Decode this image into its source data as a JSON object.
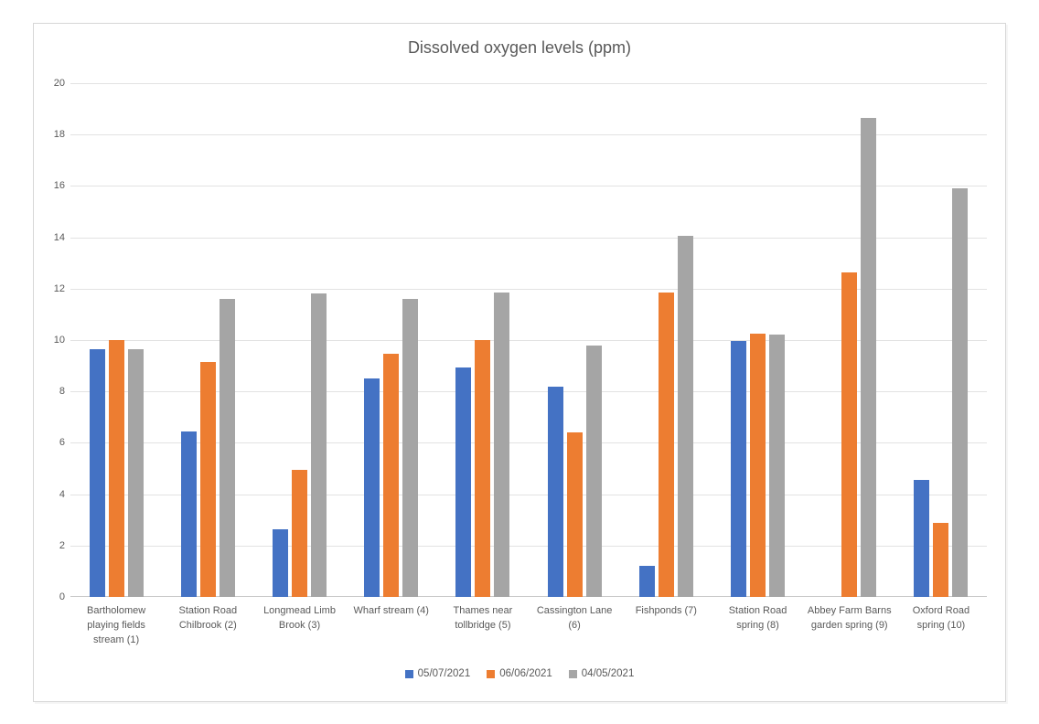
{
  "chart_data": {
    "type": "bar",
    "title": "Dissolved oxygen levels (ppm)",
    "xlabel": "",
    "ylabel": "",
    "ylim": [
      0,
      20
    ],
    "ytick_step": 2,
    "grid": true,
    "legend_position": "bottom",
    "categories": [
      "Bartholomew playing fields stream (1)",
      "Station Road Chilbrook (2)",
      "Longmead Limb Brook (3)",
      "Wharf stream (4)",
      "Thames near tollbridge (5)",
      "Cassington Lane (6)",
      "Fishponds (7)",
      "Station Road spring (8)",
      "Abbey Farm Barns garden spring (9)",
      "Oxford Road spring (10)"
    ],
    "series": [
      {
        "name": "05/07/2021",
        "color": "#4472C4",
        "values": [
          9.65,
          6.45,
          2.65,
          8.5,
          8.95,
          8.2,
          1.2,
          9.95,
          0,
          4.55
        ]
      },
      {
        "name": "06/06/2021",
        "color": "#ED7D31",
        "values": [
          10.0,
          9.15,
          4.95,
          9.45,
          10.0,
          6.4,
          11.85,
          10.25,
          12.65,
          2.9
        ]
      },
      {
        "name": "04/05/2021",
        "color": "#A5A5A5",
        "values": [
          9.65,
          11.6,
          11.8,
          11.6,
          11.85,
          9.8,
          14.05,
          10.2,
          18.65,
          15.9
        ]
      }
    ]
  },
  "styles": {
    "text_color": "#595959",
    "grid_color": "#E2E2E2",
    "border_color": "#D7D7D7",
    "background": "#FFFFFF"
  }
}
